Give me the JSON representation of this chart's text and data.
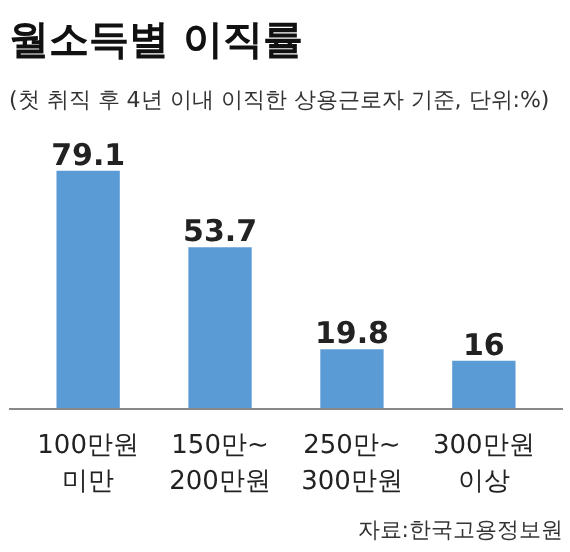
{
  "chart_data": {
    "type": "bar",
    "title": "월소득별 이직률",
    "subtitle": "(첫 취직 후 4년 이내 이직한 상용근로자 기준, 단위:%)",
    "categories": [
      "100만원\n미만",
      "150만~\n200만원",
      "250만~\n300만원",
      "300만원\n이상"
    ],
    "values": [
      79.1,
      53.7,
      19.8,
      16
    ],
    "color": "#5b9bd5",
    "data_labels": true,
    "grid": false,
    "annotations": [
      "자료:한국고용정보원"
    ]
  }
}
